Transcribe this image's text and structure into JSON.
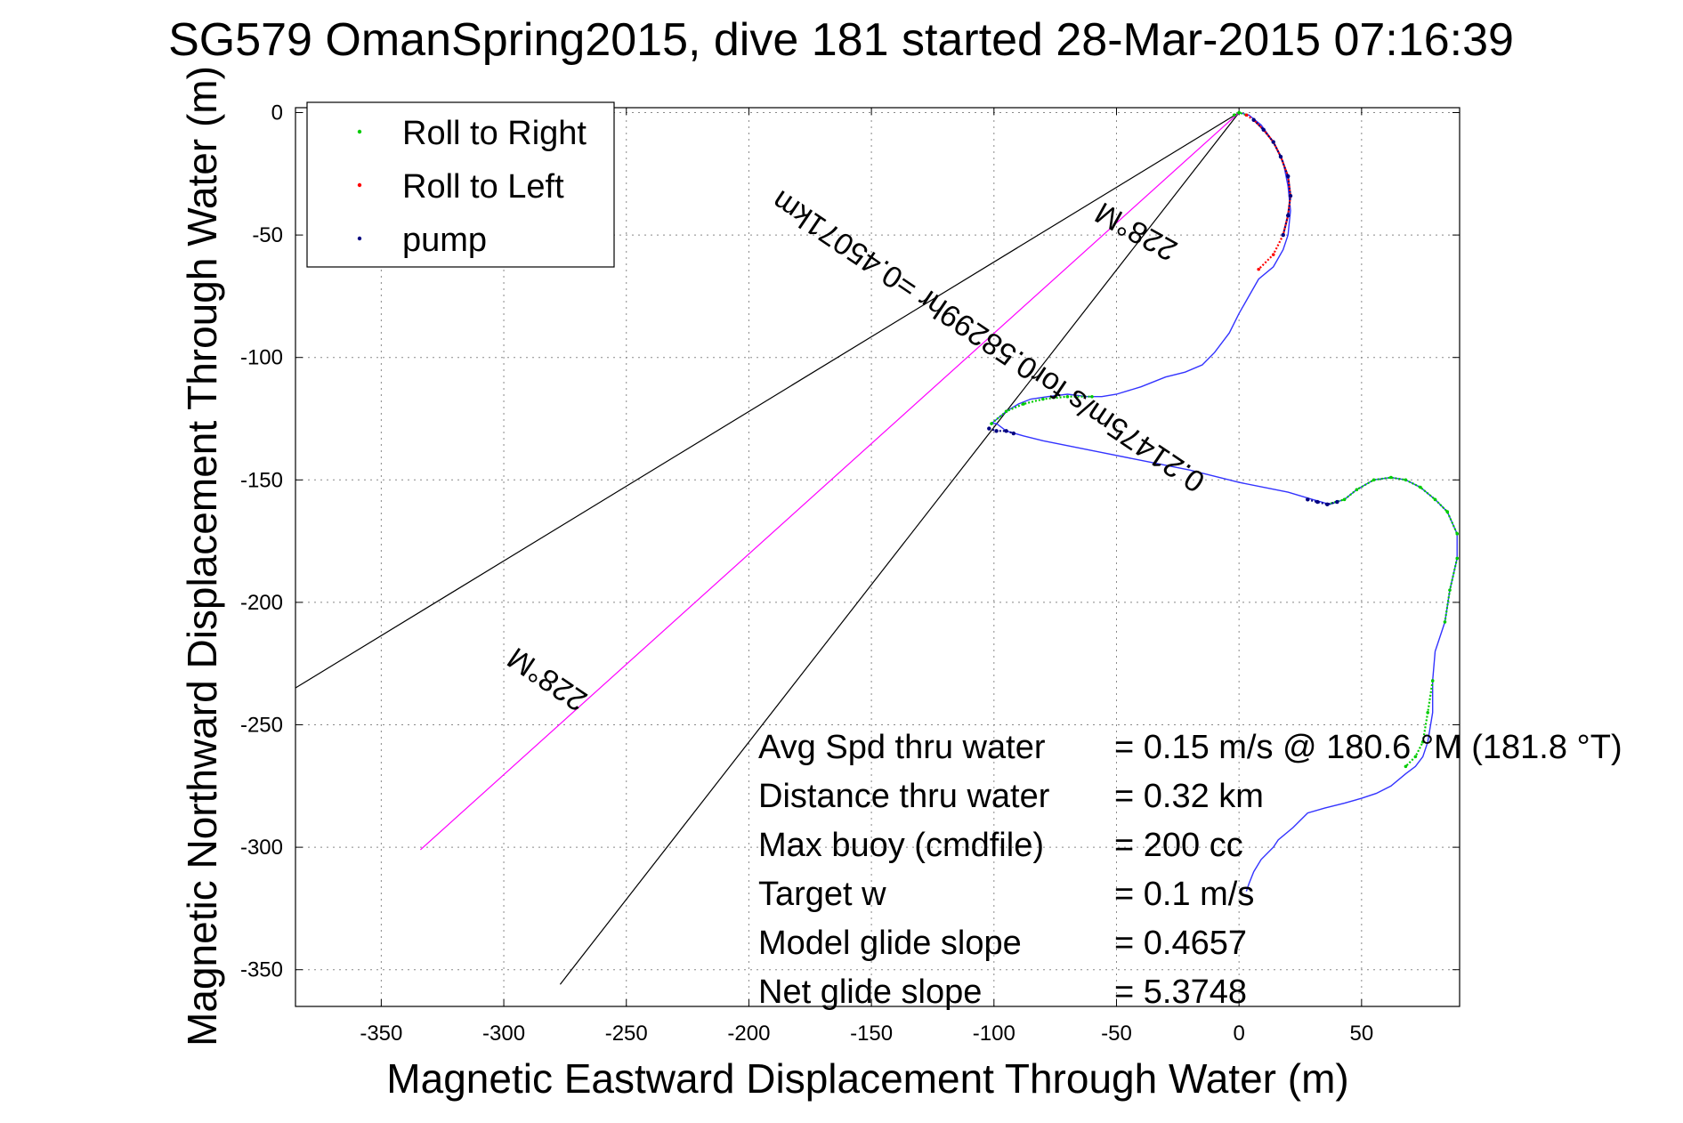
{
  "chart_data": {
    "type": "line",
    "title": "SG579 OmanSpring2015, dive 181 started 28-Mar-2015 07:16:39",
    "xlabel": "Magnetic Eastward Displacement Through Water (m)",
    "ylabel": "Magnetic Northward Displacement Through Water (m)",
    "xlim": [
      -385,
      90
    ],
    "ylim": [
      -365,
      2
    ],
    "xticks": [
      -350,
      -300,
      -250,
      -200,
      -150,
      -100,
      -50,
      0,
      50
    ],
    "yticks": [
      0,
      -50,
      -100,
      -150,
      -200,
      -250,
      -300,
      -350
    ],
    "grid": true,
    "legend_placement": "top-left",
    "legend": [
      {
        "label": "Roll to Right",
        "color": "#00cc00"
      },
      {
        "label": "Roll to Left",
        "color": "#ff0000"
      },
      {
        "label": "pump",
        "color": "#000080"
      }
    ],
    "track": {
      "color": "#3333ff",
      "x": [
        0,
        4,
        9,
        14,
        18,
        20,
        21,
        20,
        18,
        14,
        8,
        4,
        0,
        -4,
        -10,
        -15,
        -22,
        -30,
        -40,
        -50,
        -56,
        -58,
        -62,
        -70,
        -78,
        -85,
        -90,
        -95,
        -101,
        -99,
        -95,
        -88,
        -80,
        -70,
        -60,
        -40,
        -20,
        0,
        20,
        30,
        37,
        43,
        48,
        55,
        62,
        68,
        74,
        80,
        85,
        89,
        89,
        86,
        84,
        80,
        79,
        79,
        77,
        75,
        72,
        68,
        62,
        56,
        50,
        43,
        35,
        28,
        22,
        16,
        14,
        9,
        6,
        4,
        3
      ],
      "y": [
        0,
        -1,
        -5,
        -12,
        -20,
        -30,
        -40,
        -50,
        -56,
        -63,
        -68,
        -75,
        -82,
        -90,
        -98,
        -103,
        -106,
        -108,
        -112,
        -115,
        -116,
        -116,
        -116,
        -115,
        -116,
        -117,
        -119,
        -122,
        -127,
        -127,
        -130,
        -132,
        -134,
        -136,
        -138,
        -142,
        -146,
        -151,
        -155,
        -158,
        -160,
        -158,
        -154,
        -150,
        -149,
        -150,
        -153,
        -158,
        -163,
        -172,
        -182,
        -195,
        -208,
        -220,
        -232,
        -245,
        -257,
        -263,
        -267,
        -270,
        -275,
        -278,
        -280,
        -282,
        -284,
        -286,
        -292,
        -297,
        -300,
        -305,
        -310,
        -315,
        -318
      ]
    },
    "roll_right_segments": [
      {
        "x": [
          -101,
          -95,
          -88,
          -80,
          -70,
          -60
        ],
        "y": [
          -127,
          -122,
          -119,
          -117,
          -116,
          -116
        ]
      },
      {
        "x": [
          36,
          43,
          48,
          55,
          62,
          68,
          74,
          80,
          85,
          89
        ],
        "y": [
          -160,
          -158,
          -154,
          -150,
          -149,
          -150,
          -153,
          -158,
          -163,
          -172
        ]
      },
      {
        "x": [
          89,
          86,
          84
        ],
        "y": [
          -182,
          -195,
          -208
        ]
      },
      {
        "x": [
          79,
          77,
          75,
          72,
          68
        ],
        "y": [
          -232,
          -245,
          -257,
          -263,
          -267
        ]
      },
      {
        "x": [
          -2,
          0,
          3
        ],
        "y": [
          -1,
          0,
          -1
        ]
      }
    ],
    "roll_left_segments": [
      {
        "x": [
          3,
          6,
          10,
          14,
          17,
          20,
          21,
          20,
          18,
          14,
          8
        ],
        "y": [
          -1,
          -3,
          -7,
          -12,
          -18,
          -26,
          -34,
          -42,
          -50,
          -58,
          -64
        ]
      }
    ],
    "pump_segments": [
      {
        "x": [
          -102,
          -99,
          -95,
          -92
        ],
        "y": [
          -129,
          -130,
          -130,
          -131
        ]
      },
      {
        "x": [
          28,
          32,
          36,
          40
        ],
        "y": [
          -158,
          -159,
          -160,
          -159
        ]
      },
      {
        "x": [
          6,
          10,
          14,
          17,
          20,
          21,
          20,
          18
        ],
        "y": [
          -3,
          -7,
          -12,
          -18,
          -26,
          -34,
          -42,
          -50
        ]
      }
    ],
    "heading_lines": [
      {
        "role": "wedge-upper",
        "color": "#000000",
        "x": [
          0,
          -390
        ],
        "y": [
          0,
          -238
        ]
      },
      {
        "role": "wedge-lower",
        "color": "#000000",
        "x": [
          0,
          -277
        ],
        "y": [
          0,
          -356
        ]
      },
      {
        "role": "heading",
        "color": "#ff00ff",
        "x": [
          0,
          -334
        ],
        "y": [
          0,
          -301
        ]
      }
    ],
    "annotations": [
      {
        "text": "228°M",
        "x": -40,
        "y": -45,
        "rotation": 209
      },
      {
        "text": "0.21475m/s for0.58299hr =0.45071km",
        "x": -100,
        "y": -90,
        "rotation": 214
      },
      {
        "text": "228°M",
        "x": -280,
        "y": -228,
        "rotation": 214
      }
    ],
    "summary": [
      {
        "label": "Avg Spd thru water",
        "value": "=  0.15 m/s @ 180.6 °M (181.8 °T)"
      },
      {
        "label": "Distance thru water",
        "value": "=  0.32 km"
      },
      {
        "label": "Max buoy (cmdfile)",
        "value": "= 200 cc"
      },
      {
        "label": "Target w",
        "value": "= 0.1 m/s"
      },
      {
        "label": "Model glide slope",
        "value": "= 0.4657"
      },
      {
        "label": "Net glide slope",
        "value": "= 5.3748"
      }
    ]
  }
}
